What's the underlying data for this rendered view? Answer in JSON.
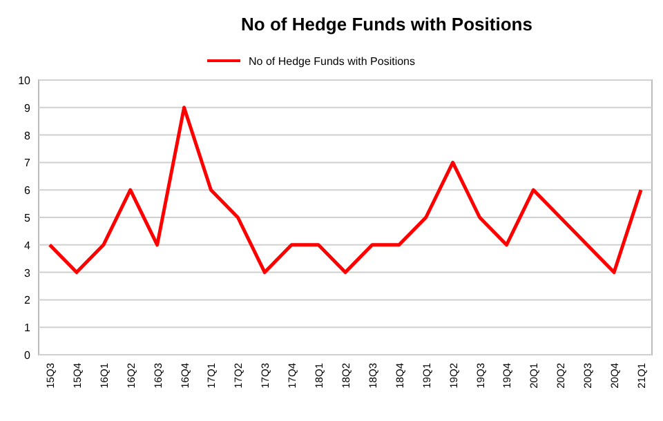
{
  "chart_data": {
    "type": "line",
    "title": "No of Hedge Funds with Positions",
    "categories": [
      "15Q3",
      "15Q4",
      "16Q1",
      "16Q2",
      "16Q3",
      "16Q4",
      "17Q1",
      "17Q2",
      "17Q3",
      "17Q4",
      "18Q1",
      "18Q2",
      "18Q3",
      "18Q4",
      "19Q1",
      "19Q2",
      "19Q3",
      "19Q4",
      "20Q1",
      "20Q2",
      "20Q3",
      "20Q4",
      "21Q1"
    ],
    "series": [
      {
        "name": "No of Hedge Funds with Positions",
        "color": "#ff0000",
        "values": [
          4,
          3,
          4,
          6,
          4,
          9,
          6,
          5,
          3,
          4,
          4,
          3,
          4,
          4,
          5,
          7,
          5,
          4,
          6,
          5,
          4,
          3,
          6
        ]
      }
    ],
    "ylim": [
      0,
      10
    ],
    "yticks": [
      0,
      1,
      2,
      3,
      4,
      5,
      6,
      7,
      8,
      9,
      10
    ],
    "grid": "y",
    "legend": "top",
    "marker": "none",
    "line_style": "solid"
  }
}
